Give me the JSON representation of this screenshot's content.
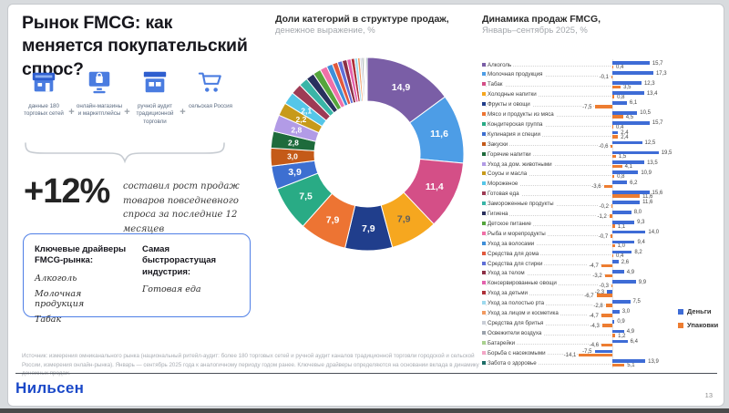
{
  "page": {
    "number": "13"
  },
  "brand": {
    "logo": "Нильсен",
    "color": "#1b49c8"
  },
  "left": {
    "title": "Рынок FMCG: как меняется покупательский спрос?",
    "plus": "+",
    "sources": [
      {
        "icon": "store-icon",
        "caption": "данные 180 торговых сетей"
      },
      {
        "icon": "online-shop-icon",
        "caption": "онлайн-магазины и маркетплейсы"
      },
      {
        "icon": "manual-audit-icon",
        "caption": "ручной аудит традиционной торговли"
      },
      {
        "icon": "rural-cart-icon",
        "caption": "сельская Россия"
      }
    ],
    "growth": {
      "value": "+12%",
      "caption": "составил рост продаж товаров повседневного спроса за последние 12 месяцев"
    },
    "drivers_box": {
      "col1_title": "Ключевые драйверы FMCG-рынка:",
      "col1_items": [
        "Алкоголь",
        "Молочная продукция",
        "Табак"
      ],
      "col2_title": "Самая быстрорастущая индустрия:",
      "col2_items": [
        "Готовая еда"
      ]
    },
    "footnote": "Источник: измерения омниканального рынка (национальный ритейл-аудит: более 180 торговых сетей и ручной аудит каналов традиционной торговли городской и сельской России, измерения онлайн-рынка). Январь — сентябрь 2025 года к аналогичному периоду годом ранее. Ключевые драйверы определяются на основании вклада в динамику денежных продаж."
  },
  "donut_header": {
    "title": "Доли категорий в структуре продаж,",
    "subtitle": "денежное выражение, %"
  },
  "bars_header": {
    "title": "Динамика продаж FMCG,",
    "subtitle": "Январь–сентябрь 2025, %",
    "legend": [
      {
        "label": "Деньги",
        "color": "#3e6cd6"
      },
      {
        "label": "Упаковки",
        "color": "#ed7d31"
      }
    ]
  },
  "chart_data": [
    {
      "type": "pie",
      "title": "Доли категорий в структуре продаж, денежное выражение, %",
      "slices": [
        {
          "name": "Алкоголь",
          "value": 14.9,
          "color": "#7a5ea6",
          "labeled": true
        },
        {
          "name": "Молочная продукция",
          "value": 11.6,
          "color": "#4d9de6",
          "labeled": true
        },
        {
          "name": "Табак",
          "value": 11.4,
          "color": "#d44f87",
          "labeled": true
        },
        {
          "name": "Холодные напитки",
          "value": 7.9,
          "color": "#f6a71f",
          "labeled": true,
          "label_color": "#5e5e5e"
        },
        {
          "name": "Фрукты и овощи",
          "value": 7.9,
          "color": "#203e8c",
          "labeled": true
        },
        {
          "name": "Мясо и продукты из мяса",
          "value": 7.9,
          "color": "#ed7433",
          "labeled": true
        },
        {
          "name": "Кондитерская группа",
          "value": 7.5,
          "color": "#29ab85",
          "labeled": true
        },
        {
          "name": "Кулинария и специи",
          "value": 3.9,
          "color": "#3d6fd1",
          "labeled": true
        },
        {
          "name": "Закуски",
          "value": 3.0,
          "color": "#c45a18",
          "labeled": true
        },
        {
          "name": "Горячие напитки",
          "value": 2.8,
          "color": "#1e6b3c",
          "labeled": true
        },
        {
          "name": "Уход за дом. животными",
          "value": 2.8,
          "color": "#b29be6",
          "labeled": true
        },
        {
          "name": "Соусы и масла",
          "value": 2.2,
          "color": "#c79a1a",
          "labeled": true
        },
        {
          "name": "Мороженое",
          "value": 2.1,
          "color": "#55c6e8",
          "labeled": true
        },
        {
          "name": "Готовая еда",
          "value": 1.8,
          "color": "#9e3b55",
          "labeled": false
        },
        {
          "name": "Замороженные продукты",
          "value": 1.5,
          "color": "#39b5a7",
          "labeled": false
        },
        {
          "name": "Гигиена",
          "value": 1.4,
          "color": "#29305e",
          "labeled": false
        },
        {
          "name": "Детское питание",
          "value": 1.3,
          "color": "#55a53c",
          "labeled": false
        },
        {
          "name": "Рыба и морепродукты",
          "value": 1.2,
          "color": "#f070a8",
          "labeled": false
        },
        {
          "name": "Уход за волосами",
          "value": 1.0,
          "color": "#3f8fd9",
          "labeled": false
        },
        {
          "name": "Средства для дома",
          "value": 0.9,
          "color": "#e2593c",
          "labeled": false
        },
        {
          "name": "Средства для стирки",
          "value": 0.8,
          "color": "#5f6fd8",
          "labeled": false
        },
        {
          "name": "Уход за телом",
          "value": 0.8,
          "color": "#8c2f45",
          "labeled": false
        },
        {
          "name": "Консервированные овощи",
          "value": 0.7,
          "color": "#e463ae",
          "labeled": false
        },
        {
          "name": "Уход за детьми",
          "value": 0.6,
          "color": "#ae3038",
          "labeled": false
        },
        {
          "name": "Уход за полостью рта",
          "value": 0.5,
          "color": "#9dd9ee",
          "labeled": false
        },
        {
          "name": "Уход за лицом и косметика",
          "value": 0.4,
          "color": "#f29a60",
          "labeled": false
        },
        {
          "name": "Средства для бритья",
          "value": 0.3,
          "color": "#c8cdd6",
          "labeled": false
        },
        {
          "name": "Освежители воздуха",
          "value": 0.3,
          "color": "#9aa2ac",
          "labeled": false
        },
        {
          "name": "Батарейки",
          "value": 0.2,
          "color": "#a9d18e",
          "labeled": false
        },
        {
          "name": "Борьба с насекомыми",
          "value": 0.2,
          "color": "#f3a6c6",
          "labeled": false
        },
        {
          "name": "Забота о здоровье",
          "value": 0.2,
          "color": "#1e6e68",
          "labeled": false
        }
      ]
    },
    {
      "type": "bar",
      "orientation": "horizontal",
      "title": "Динамика продаж FMCG, Январь–сентябрь 2025, %",
      "categories": [
        "Алкоголь",
        "Молочная продукция",
        "Табак",
        "Холодные напитки",
        "Фрукты и овощи",
        "Мясо и продукты из мяса",
        "Кондитерская группа",
        "Кулинария и специи",
        "Закуски",
        "Горячие напитки",
        "Уход за дом. животными",
        "Соусы и масла",
        "Мороженое",
        "Готовая еда",
        "Замороженные продукты",
        "Гигиена",
        "Детское питание",
        "Рыба и морепродукты",
        "Уход за волосами",
        "Средства для дома",
        "Средства для стирки",
        "Уход за телом",
        "Консервированные овощи",
        "Уход за детьми",
        "Уход за полостью рта",
        "Уход за лицом и косметика",
        "Средства для бритья",
        "Освежители воздуха",
        "Батарейки",
        "Борьба с насекомыми",
        "Забота о здоровье"
      ],
      "category_colors": [
        "#7a5ea6",
        "#4d9de6",
        "#d44f87",
        "#f6a71f",
        "#203e8c",
        "#ed7433",
        "#29ab85",
        "#3d6fd1",
        "#c45a18",
        "#1e6b3c",
        "#b29be6",
        "#c79a1a",
        "#55c6e8",
        "#9e3b55",
        "#39b5a7",
        "#29305e",
        "#55a53c",
        "#f070a8",
        "#3f8fd9",
        "#e2593c",
        "#5f6fd8",
        "#8c2f45",
        "#e463ae",
        "#ae3038",
        "#9dd9ee",
        "#f29a60",
        "#c8cdd6",
        "#9aa2ac",
        "#a9d18e",
        "#f3a6c6",
        "#1e6e68"
      ],
      "series": [
        {
          "name": "Деньги",
          "color": "#3e6cd6",
          "values": [
            15.7,
            17.3,
            12.3,
            13.4,
            6.1,
            10.5,
            15.7,
            2.4,
            12.5,
            19.5,
            13.5,
            10.9,
            6.2,
            15.6,
            11.6,
            8.0,
            9.3,
            14.0,
            9.4,
            8.2,
            2.6,
            4.9,
            9.9,
            -2.3,
            7.5,
            3.0,
            0.9,
            4.9,
            6.4,
            -7.5,
            13.9
          ]
        },
        {
          "name": "Упаковки",
          "color": "#ed7d31",
          "values": [
            0.4,
            -0.1,
            3.5,
            0.8,
            -7.5,
            4.5,
            0.4,
            2.4,
            -0.6,
            1.5,
            4.1,
            0.8,
            -3.6,
            11.6,
            -0.2,
            -1.2,
            1.1,
            -0.7,
            1.0,
            0.4,
            -4.7,
            -3.2,
            -0.3,
            -6.7,
            -2.8,
            -4.7,
            -4.3,
            1.2,
            -4.6,
            -14.1,
            5.1
          ]
        }
      ],
      "value_format": "comma-decimal"
    }
  ]
}
